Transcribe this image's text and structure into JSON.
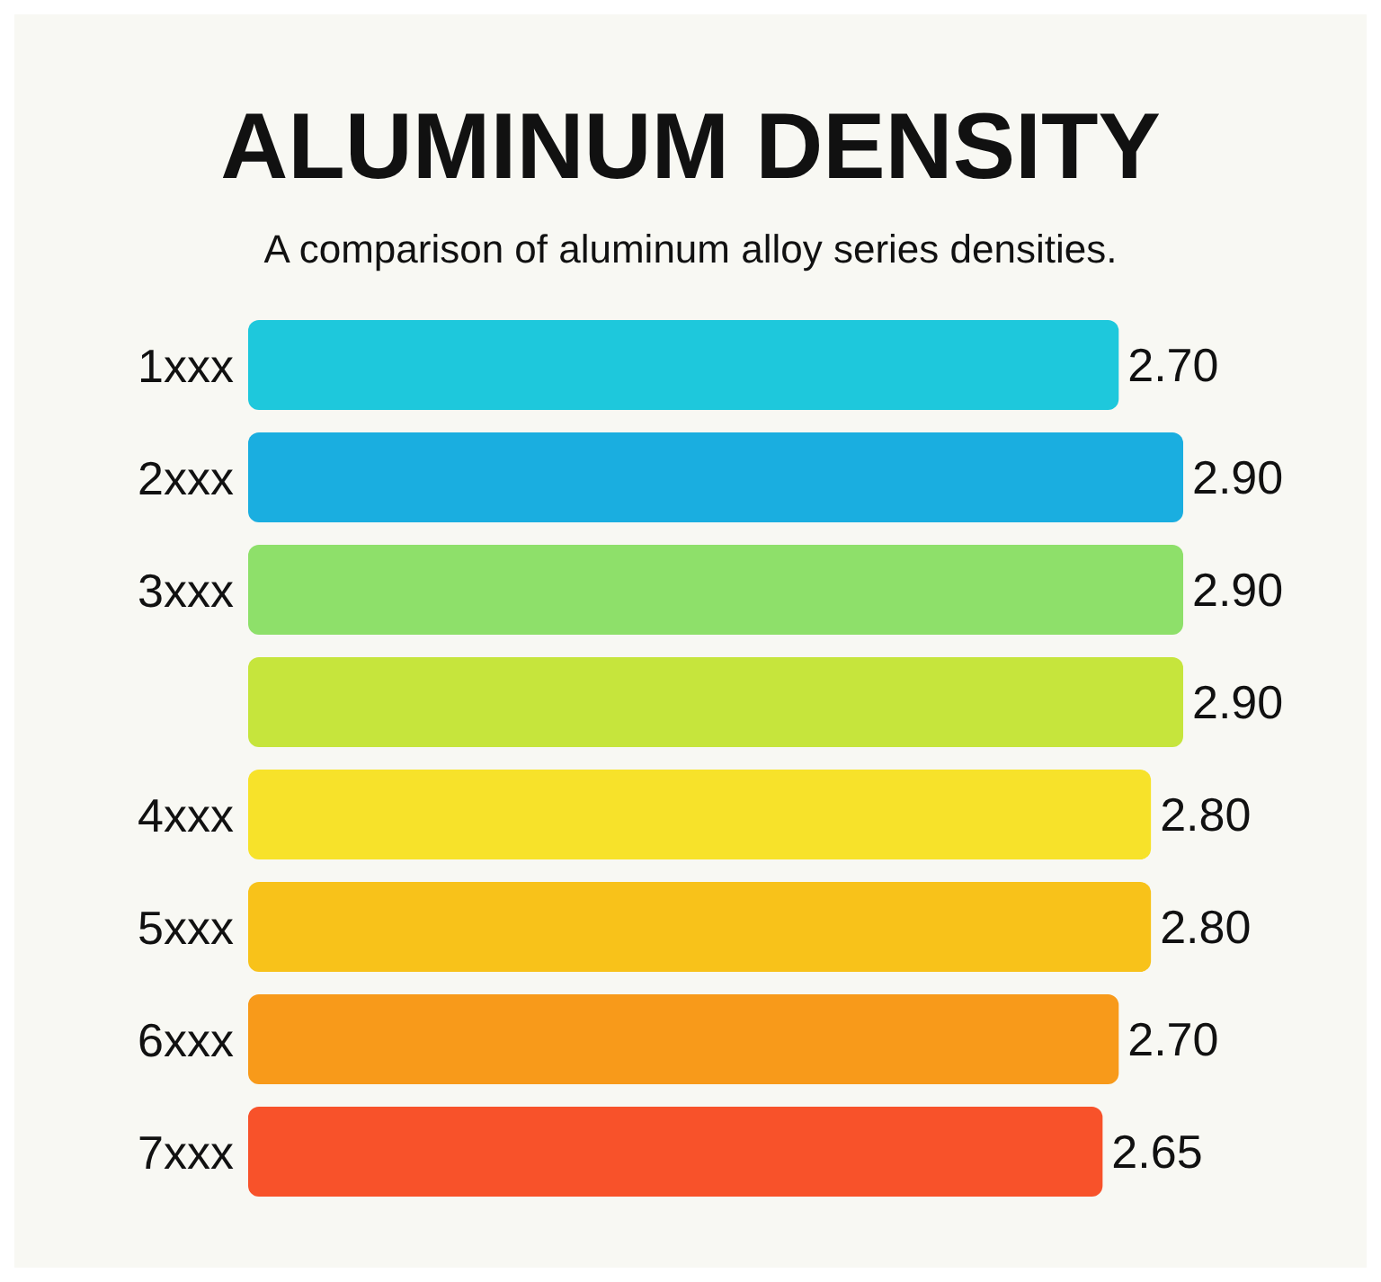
{
  "chart_data": {
    "type": "bar",
    "orientation": "horizontal",
    "title": "ALUMINUM DENSITY",
    "subtitle": "A comparison of aluminum alloy series densities.",
    "categories": [
      "1xxx",
      "2xxx",
      "3xxx",
      null,
      "4xxx",
      "5xxx",
      "6xxx",
      "7xxx"
    ],
    "values": [
      2.7,
      2.9,
      2.9,
      2.9,
      2.8,
      2.8,
      2.7,
      2.65
    ],
    "colors": [
      "#1ec8dc",
      "#1aaee0",
      "#8ee06a",
      "#c6e53c",
      "#f7e22a",
      "#f8c21a",
      "#f89a1a",
      "#f8522a"
    ],
    "value_labels": [
      "2.70",
      "2.90",
      "2.90",
      "2.90",
      "2.80",
      "2.80",
      "2.70",
      "2.65"
    ],
    "tick_labels": "y"
  }
}
